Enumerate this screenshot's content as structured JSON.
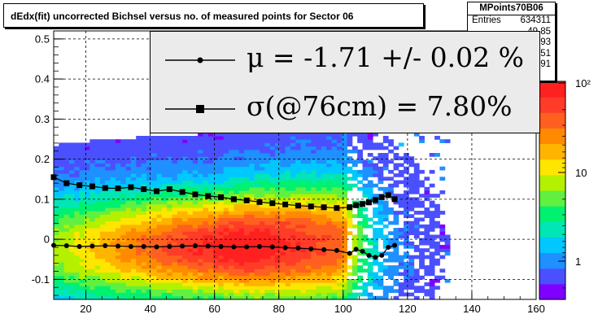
{
  "chart_data": {
    "type": "heatmap",
    "title": "dEdx(fit) uncorrected Bichsel versus no. of measured points for Sector 06",
    "xlim": [
      10,
      160
    ],
    "ylim": [
      -0.15,
      0.52
    ],
    "x_ticks": [
      "20",
      "40",
      "60",
      "80",
      "100",
      "120",
      "140",
      "160"
    ],
    "y_ticks": [
      "-0.1",
      "0",
      "0.1",
      "0.2",
      "0.3",
      "0.4",
      "0.5"
    ],
    "grid": true,
    "z_scale": "log",
    "z_ticks": [
      "1",
      "10",
      "10²"
    ],
    "series": [
      {
        "marker": "circle",
        "x": [
          10,
          14,
          18,
          22,
          26,
          30,
          34,
          38,
          42,
          46,
          50,
          54,
          58,
          62,
          66,
          70,
          74,
          78,
          82,
          86,
          90,
          94,
          98,
          102,
          104,
          106,
          108,
          110,
          112,
          114,
          116
        ],
        "y": [
          -0.015,
          -0.016,
          -0.018,
          -0.017,
          -0.016,
          -0.017,
          -0.018,
          -0.018,
          -0.019,
          -0.018,
          -0.017,
          -0.016,
          -0.017,
          -0.018,
          -0.019,
          -0.019,
          -0.018,
          -0.019,
          -0.021,
          -0.022,
          -0.024,
          -0.026,
          -0.028,
          -0.035,
          -0.025,
          -0.03,
          -0.04,
          -0.045,
          -0.04,
          -0.02,
          -0.015
        ]
      },
      {
        "marker": "square",
        "x": [
          10,
          14,
          18,
          22,
          26,
          30,
          34,
          38,
          42,
          46,
          50,
          54,
          58,
          62,
          66,
          70,
          74,
          78,
          82,
          86,
          90,
          94,
          98,
          102,
          104,
          106,
          108,
          110,
          112,
          114,
          116
        ],
        "y": [
          0.155,
          0.14,
          0.135,
          0.132,
          0.128,
          0.127,
          0.13,
          0.125,
          0.12,
          0.125,
          0.118,
          0.112,
          0.108,
          0.105,
          0.1,
          0.097,
          0.093,
          0.09,
          0.087,
          0.084,
          0.082,
          0.08,
          0.078,
          0.08,
          0.085,
          0.088,
          0.092,
          0.098,
          0.105,
          0.11,
          0.1
        ]
      }
    ]
  },
  "title_box": {
    "text": "dEdx(fit) uncorrected Bichsel versus no. of measured points for Sector 06"
  },
  "stats_box": {
    "title": "MPoints70B06",
    "rows": [
      {
        "k": "Entries",
        "v": "634311"
      },
      {
        "k": "",
        "v": "49.85"
      },
      {
        "k": "",
        "v": "0.04093"
      },
      {
        "k": "",
        "v": "24.51"
      },
      {
        "k": "",
        "v": "0.1391"
      }
    ]
  },
  "legend": {
    "mu": "μ  = -1.71 +/-  0.02 %",
    "sigma": "σ(@76cm) =  7.80%"
  },
  "colors": {
    "frame": "#000000",
    "legend_bg": "#ebebeb",
    "palette": [
      "#8000ff",
      "#4b50ff",
      "#1e90ff",
      "#00c8ff",
      "#00e6b4",
      "#00f070",
      "#60f040",
      "#b4f000",
      "#ffe600",
      "#ffb400",
      "#ff8a00",
      "#ff6020",
      "#ff3c28",
      "#ff2020"
    ]
  }
}
